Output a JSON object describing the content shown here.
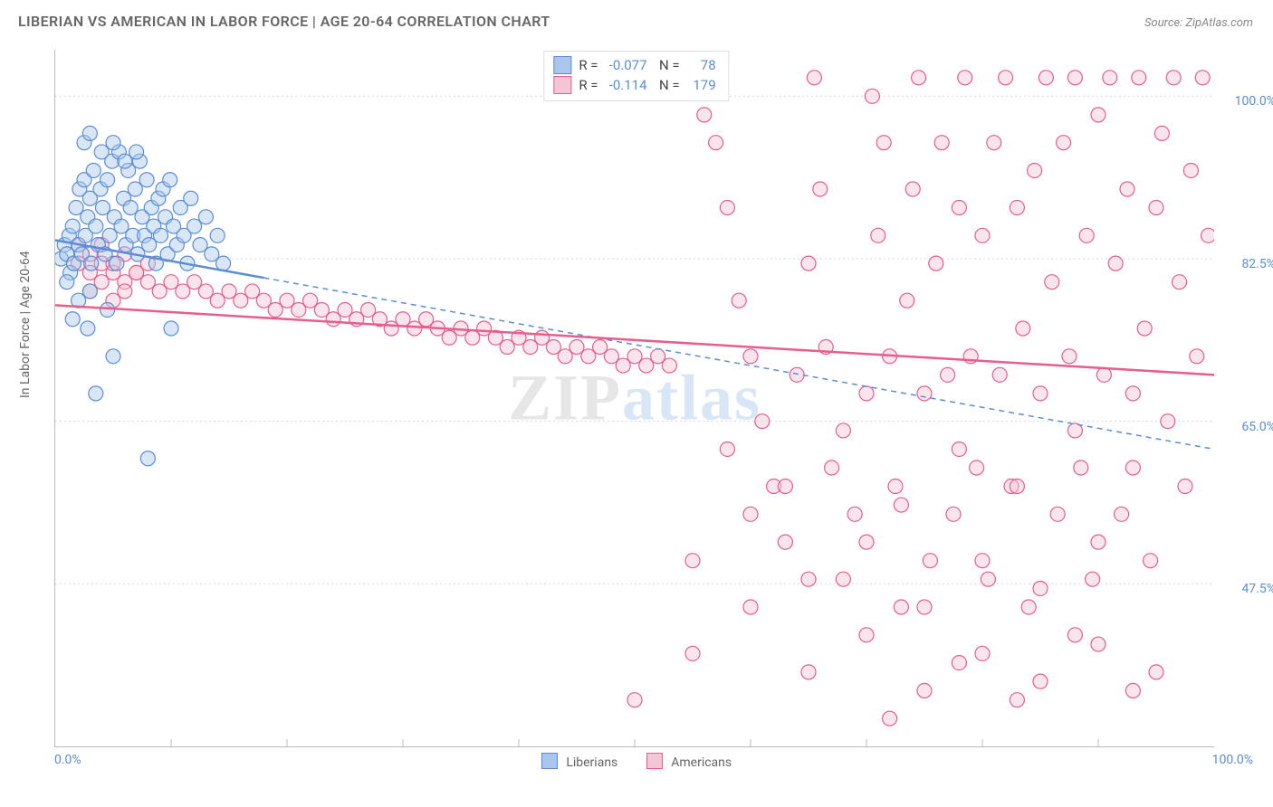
{
  "title": "LIBERIAN VS AMERICAN IN LABOR FORCE | AGE 20-64 CORRELATION CHART",
  "source_label": "Source: ZipAtlas.com",
  "y_axis_label": "In Labor Force | Age 20-64",
  "watermark_text": "ZIPatlas",
  "chart": {
    "type": "scatter",
    "xlim": [
      0,
      100
    ],
    "ylim": [
      30,
      105
    ],
    "x_tick_positions": [
      10,
      20,
      30,
      40,
      50,
      60,
      70,
      80,
      90
    ],
    "y_grid": [
      {
        "value": 100.0,
        "label": "100.0%"
      },
      {
        "value": 82.5,
        "label": "82.5%"
      },
      {
        "value": 65.0,
        "label": "65.0%"
      },
      {
        "value": 47.5,
        "label": "47.5%"
      }
    ],
    "x_min_label": "0.0%",
    "x_max_label": "100.0%",
    "grid_color": "#d9d9d9",
    "background_color": "#ffffff",
    "axis_color": "#bbbbbb",
    "label_color": "#5b8dd6",
    "marker_radius": 8,
    "marker_stroke_width": 1.2,
    "trendline_width": 2.5,
    "trendline_dash": "6,5",
    "series": [
      {
        "name": "Liberians",
        "fill_color": "#a9c7ec",
        "stroke_color": "#5b8dd6",
        "fill_opacity": 0.45,
        "R": "-0.077",
        "N": "78",
        "trendline": {
          "x1": 0,
          "y1": 84.5,
          "x2": 100,
          "y2": 62.0,
          "solid_until_x": 18
        },
        "points": [
          [
            0.5,
            82.5
          ],
          [
            0.8,
            84
          ],
          [
            1.0,
            83
          ],
          [
            1.2,
            85
          ],
          [
            1.3,
            81
          ],
          [
            1.5,
            86
          ],
          [
            1.6,
            82
          ],
          [
            1.8,
            88
          ],
          [
            2.0,
            84
          ],
          [
            2.1,
            90
          ],
          [
            2.3,
            83
          ],
          [
            2.5,
            91
          ],
          [
            2.6,
            85
          ],
          [
            2.8,
            87
          ],
          [
            3.0,
            89
          ],
          [
            3.1,
            82
          ],
          [
            3.3,
            92
          ],
          [
            3.5,
            86
          ],
          [
            3.7,
            84
          ],
          [
            3.9,
            90
          ],
          [
            4.1,
            88
          ],
          [
            4.3,
            83
          ],
          [
            4.5,
            91
          ],
          [
            4.7,
            85
          ],
          [
            4.9,
            93
          ],
          [
            5.1,
            87
          ],
          [
            5.3,
            82
          ],
          [
            5.5,
            94
          ],
          [
            5.7,
            86
          ],
          [
            5.9,
            89
          ],
          [
            6.1,
            84
          ],
          [
            6.3,
            92
          ],
          [
            6.5,
            88
          ],
          [
            6.7,
            85
          ],
          [
            6.9,
            90
          ],
          [
            7.1,
            83
          ],
          [
            7.3,
            93
          ],
          [
            7.5,
            87
          ],
          [
            7.7,
            85
          ],
          [
            7.9,
            91
          ],
          [
            8.1,
            84
          ],
          [
            8.3,
            88
          ],
          [
            8.5,
            86
          ],
          [
            8.7,
            82
          ],
          [
            8.9,
            89
          ],
          [
            9.1,
            85
          ],
          [
            9.3,
            90
          ],
          [
            9.5,
            87
          ],
          [
            9.7,
            83
          ],
          [
            9.9,
            91
          ],
          [
            10.2,
            86
          ],
          [
            10.5,
            84
          ],
          [
            10.8,
            88
          ],
          [
            11.1,
            85
          ],
          [
            11.4,
            82
          ],
          [
            11.7,
            89
          ],
          [
            12.0,
            86
          ],
          [
            12.5,
            84
          ],
          [
            13.0,
            87
          ],
          [
            13.5,
            83
          ],
          [
            14.0,
            85
          ],
          [
            14.5,
            82
          ],
          [
            2.5,
            95
          ],
          [
            3.0,
            96
          ],
          [
            4.0,
            94
          ],
          [
            5.0,
            95
          ],
          [
            6.0,
            93
          ],
          [
            7.0,
            94
          ],
          [
            1.0,
            80
          ],
          [
            2.0,
            78
          ],
          [
            3.0,
            79
          ],
          [
            4.5,
            77
          ],
          [
            1.5,
            76
          ],
          [
            2.8,
            75
          ],
          [
            3.5,
            68
          ],
          [
            5.0,
            72
          ],
          [
            8.0,
            61
          ],
          [
            10.0,
            75
          ]
        ]
      },
      {
        "name": "Americans",
        "fill_color": "#f4c5d4",
        "stroke_color": "#e85d8c",
        "fill_opacity": 0.45,
        "R": "-0.114",
        "N": "179",
        "trendline": {
          "x1": 0,
          "y1": 77.5,
          "x2": 100,
          "y2": 70.0,
          "solid_until_x": 100
        },
        "points": [
          [
            2,
            82
          ],
          [
            3,
            81
          ],
          [
            4,
            82
          ],
          [
            5,
            81
          ],
          [
            6,
            80
          ],
          [
            7,
            81
          ],
          [
            8,
            80
          ],
          [
            9,
            79
          ],
          [
            10,
            80
          ],
          [
            11,
            79
          ],
          [
            12,
            80
          ],
          [
            13,
            79
          ],
          [
            14,
            78
          ],
          [
            15,
            79
          ],
          [
            16,
            78
          ],
          [
            17,
            79
          ],
          [
            18,
            78
          ],
          [
            19,
            77
          ],
          [
            20,
            78
          ],
          [
            21,
            77
          ],
          [
            22,
            78
          ],
          [
            23,
            77
          ],
          [
            24,
            76
          ],
          [
            25,
            77
          ],
          [
            26,
            76
          ],
          [
            27,
            77
          ],
          [
            28,
            76
          ],
          [
            29,
            75
          ],
          [
            30,
            76
          ],
          [
            31,
            75
          ],
          [
            32,
            76
          ],
          [
            33,
            75
          ],
          [
            34,
            74
          ],
          [
            35,
            75
          ],
          [
            36,
            74
          ],
          [
            37,
            75
          ],
          [
            38,
            74
          ],
          [
            39,
            73
          ],
          [
            40,
            74
          ],
          [
            41,
            73
          ],
          [
            42,
            74
          ],
          [
            43,
            73
          ],
          [
            44,
            72
          ],
          [
            45,
            73
          ],
          [
            46,
            72
          ],
          [
            47,
            73
          ],
          [
            48,
            72
          ],
          [
            49,
            71
          ],
          [
            50,
            72
          ],
          [
            51,
            71
          ],
          [
            52,
            72
          ],
          [
            53,
            71
          ],
          [
            55,
            102
          ],
          [
            56,
            98
          ],
          [
            57,
            95
          ],
          [
            58,
            88
          ],
          [
            59,
            78
          ],
          [
            60,
            72
          ],
          [
            61,
            65
          ],
          [
            62,
            58
          ],
          [
            63,
            52
          ],
          [
            64,
            70
          ],
          [
            65,
            82
          ],
          [
            65.5,
            102
          ],
          [
            66,
            90
          ],
          [
            66.5,
            73
          ],
          [
            67,
            60
          ],
          [
            68,
            48
          ],
          [
            69,
            55
          ],
          [
            70,
            68
          ],
          [
            70.5,
            100
          ],
          [
            71,
            85
          ],
          [
            71.5,
            95
          ],
          [
            72,
            72
          ],
          [
            72.5,
            58
          ],
          [
            73,
            45
          ],
          [
            73.5,
            78
          ],
          [
            74,
            90
          ],
          [
            74.5,
            102
          ],
          [
            75,
            68
          ],
          [
            75.5,
            50
          ],
          [
            76,
            82
          ],
          [
            76.5,
            95
          ],
          [
            77,
            70
          ],
          [
            77.5,
            55
          ],
          [
            78,
            88
          ],
          [
            78.5,
            102
          ],
          [
            79,
            72
          ],
          [
            79.5,
            60
          ],
          [
            80,
            85
          ],
          [
            80.5,
            48
          ],
          [
            81,
            95
          ],
          [
            81.5,
            70
          ],
          [
            82,
            102
          ],
          [
            82.5,
            58
          ],
          [
            83,
            88
          ],
          [
            83.5,
            75
          ],
          [
            84,
            45
          ],
          [
            84.5,
            92
          ],
          [
            85,
            68
          ],
          [
            85.5,
            102
          ],
          [
            86,
            80
          ],
          [
            86.5,
            55
          ],
          [
            87,
            95
          ],
          [
            87.5,
            72
          ],
          [
            88,
            102
          ],
          [
            88.5,
            60
          ],
          [
            89,
            85
          ],
          [
            89.5,
            48
          ],
          [
            90,
            98
          ],
          [
            90.5,
            70
          ],
          [
            91,
            102
          ],
          [
            91.5,
            82
          ],
          [
            92,
            55
          ],
          [
            92.5,
            90
          ],
          [
            93,
            68
          ],
          [
            93.5,
            102
          ],
          [
            94,
            75
          ],
          [
            94.5,
            50
          ],
          [
            95,
            88
          ],
          [
            95.5,
            96
          ],
          [
            96,
            65
          ],
          [
            96.5,
            102
          ],
          [
            97,
            80
          ],
          [
            97.5,
            58
          ],
          [
            98,
            92
          ],
          [
            98.5,
            72
          ],
          [
            99,
            102
          ],
          [
            99.5,
            85
          ],
          [
            50,
            35
          ],
          [
            55,
            40
          ],
          [
            60,
            45
          ],
          [
            65,
            38
          ],
          [
            70,
            42
          ],
          [
            75,
            36
          ],
          [
            80,
            40
          ],
          [
            85,
            37
          ],
          [
            90,
            41
          ],
          [
            95,
            38
          ],
          [
            72,
            33
          ],
          [
            78,
            39
          ],
          [
            83,
            35
          ],
          [
            88,
            42
          ],
          [
            93,
            36
          ],
          [
            55,
            50
          ],
          [
            60,
            55
          ],
          [
            65,
            48
          ],
          [
            70,
            52
          ],
          [
            75,
            45
          ],
          [
            80,
            50
          ],
          [
            85,
            47
          ],
          [
            90,
            52
          ],
          [
            58,
            62
          ],
          [
            63,
            58
          ],
          [
            68,
            64
          ],
          [
            73,
            56
          ],
          [
            78,
            62
          ],
          [
            83,
            58
          ],
          [
            88,
            64
          ],
          [
            93,
            60
          ],
          [
            2,
            84
          ],
          [
            3,
            83
          ],
          [
            4,
            84
          ],
          [
            5,
            82
          ],
          [
            6,
            83
          ],
          [
            7,
            81
          ],
          [
            8,
            82
          ],
          [
            3,
            79
          ],
          [
            4,
            80
          ],
          [
            5,
            78
          ],
          [
            6,
            79
          ]
        ]
      }
    ]
  },
  "bottom_legend": {
    "items": [
      {
        "label": "Liberians",
        "fill": "#a9c7ec",
        "stroke": "#5b8dd6"
      },
      {
        "label": "Americans",
        "fill": "#f4c5d4",
        "stroke": "#e85d8c"
      }
    ]
  }
}
